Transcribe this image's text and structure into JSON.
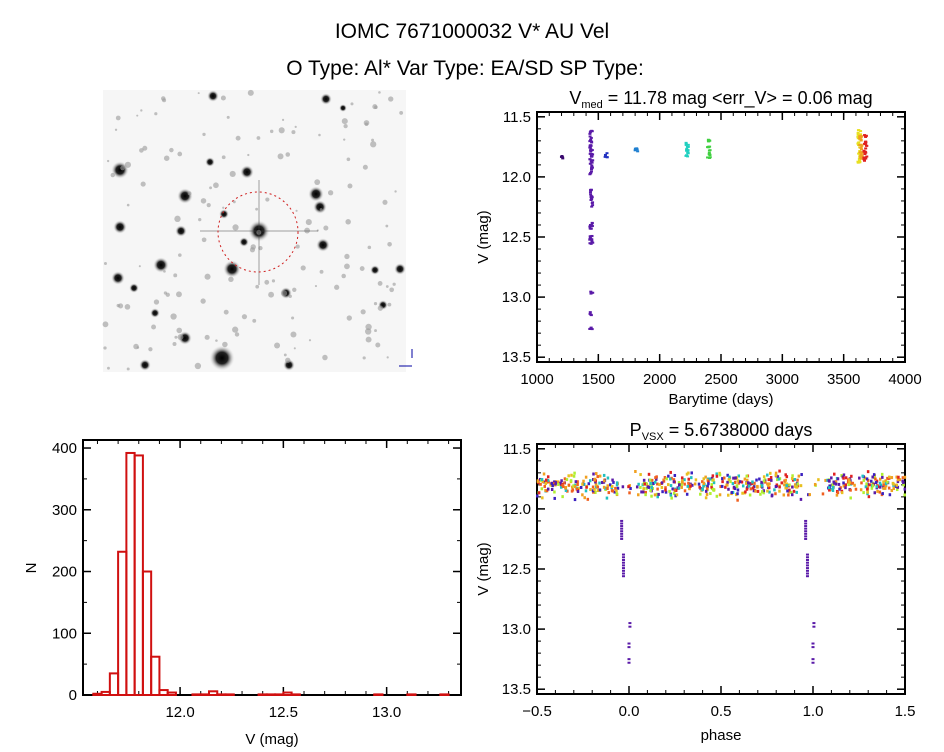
{
  "header": {
    "title": "IOMC 7671000032    V* AU Vel",
    "subtitle": "O Type: Al*  Var Type: EA/SD  SP Type:"
  },
  "colors": {
    "axis": "#000000",
    "hist": "#d01010",
    "circle": "#d02020"
  },
  "chart_data": [
    {
      "id": "finder-image",
      "type": "image",
      "description_marks": "star field with target circle"
    },
    {
      "id": "lightcurve",
      "type": "scatter",
      "title_main": "V",
      "title_sub": "med",
      "title_rest": " = 11.78 mag <err_V> = 0.06 mag",
      "xlabel": "Barytime (days)",
      "ylabel": "V (mag)",
      "xlim": [
        1000,
        4000
      ],
      "ylim": [
        13.54,
        11.46
      ],
      "xticks": [
        "1000",
        "1500",
        "2000",
        "2500",
        "3000",
        "3500",
        "4000"
      ],
      "yticks": [
        "11.5",
        "12.0",
        "12.5",
        "13.0",
        "13.5"
      ],
      "groups": [
        {
          "t": 1190,
          "v": [
            11.82,
            11.85
          ],
          "color": "#3a0a6e"
        },
        {
          "t": 1430,
          "v": [
            11.58,
            11.98
          ],
          "color": "#5a1aa8"
        },
        {
          "t": 1430,
          "v": [
            12.1,
            12.25
          ],
          "color": "#5a1aa8"
        },
        {
          "t": 1430,
          "v": [
            12.38,
            12.56
          ],
          "color": "#5a1aa8"
        },
        {
          "t": 1430,
          "v": [
            12.95,
            12.98
          ],
          "color": "#5a1aa8"
        },
        {
          "t": 1430,
          "v": [
            13.12,
            13.15
          ],
          "color": "#5a1aa8"
        },
        {
          "t": 1430,
          "v": [
            13.25,
            13.28
          ],
          "color": "#5a1aa8"
        },
        {
          "t": 1555,
          "v": [
            11.8,
            11.84
          ],
          "color": "#2030c0"
        },
        {
          "t": 1800,
          "v": [
            11.76,
            11.8
          ],
          "color": "#1e7fd0"
        },
        {
          "t": 2210,
          "v": [
            11.7,
            11.84
          ],
          "color": "#20d0c0"
        },
        {
          "t": 2390,
          "v": [
            11.69,
            11.85
          ],
          "color": "#40d040"
        },
        {
          "t": 3615,
          "v": [
            11.61,
            11.89
          ],
          "color": "#e8e020"
        },
        {
          "t": 3630,
          "v": [
            11.66,
            11.86
          ],
          "color": "#f0a020"
        },
        {
          "t": 3665,
          "v": [
            11.65,
            11.87
          ],
          "color": "#e02020"
        }
      ]
    },
    {
      "id": "histogram",
      "type": "bar",
      "xlabel": "V (mag)",
      "ylabel": "N",
      "xlim": [
        11.53,
        13.36
      ],
      "ylim": [
        0,
        413
      ],
      "xticks": [
        "12.0",
        "12.5",
        "13.0"
      ],
      "yticks": [
        "0",
        "100",
        "200",
        "300",
        "400"
      ],
      "bin_width": 0.04,
      "bin_centers": [
        11.6,
        11.64,
        11.68,
        11.72,
        11.76,
        11.8,
        11.84,
        11.88,
        11.92,
        11.96,
        12.08,
        12.12,
        12.16,
        12.2,
        12.24,
        12.4,
        12.44,
        12.48,
        12.52,
        12.56,
        12.96,
        13.12,
        13.28
      ],
      "values": [
        2,
        5,
        35,
        232,
        392,
        388,
        200,
        62,
        8,
        4,
        1,
        1,
        6,
        1,
        1,
        1,
        1,
        1,
        4,
        1,
        1,
        1,
        1
      ]
    },
    {
      "id": "phased",
      "type": "scatter",
      "title_main": "P",
      "title_sub": "VSX",
      "title_rest": " = 5.6738000 days",
      "xlabel": "phase",
      "ylabel": "V (mag)",
      "xlim": [
        -0.5,
        1.5
      ],
      "ylim": [
        13.54,
        11.46
      ],
      "xticks": [
        "-0.5",
        "0.0",
        "0.5",
        "1.0",
        "1.5"
      ],
      "yticks": [
        "11.5",
        "12.0",
        "12.5",
        "13.0",
        "13.5"
      ],
      "period_days": 5.6738,
      "band": {
        "v": [
          11.7,
          11.9
        ],
        "colors": [
          "#5a1aa8",
          "#3a20c0",
          "#e02020",
          "#f0a020",
          "#e8c020",
          "#b0f030",
          "#f06020",
          "#20c0c0"
        ]
      },
      "eclipse_points": [
        {
          "phase": -0.04,
          "v": [
            12.1,
            12.25
          ]
        },
        {
          "phase": -0.03,
          "v": [
            12.38,
            12.56
          ]
        },
        {
          "phase": 0.005,
          "v": [
            12.95,
            12.98
          ]
        },
        {
          "phase": 0.0,
          "v": [
            13.12,
            13.15
          ]
        },
        {
          "phase": 0.0,
          "v": [
            13.25,
            13.28
          ]
        }
      ],
      "eclipse_color": "#5a1aa8"
    }
  ]
}
